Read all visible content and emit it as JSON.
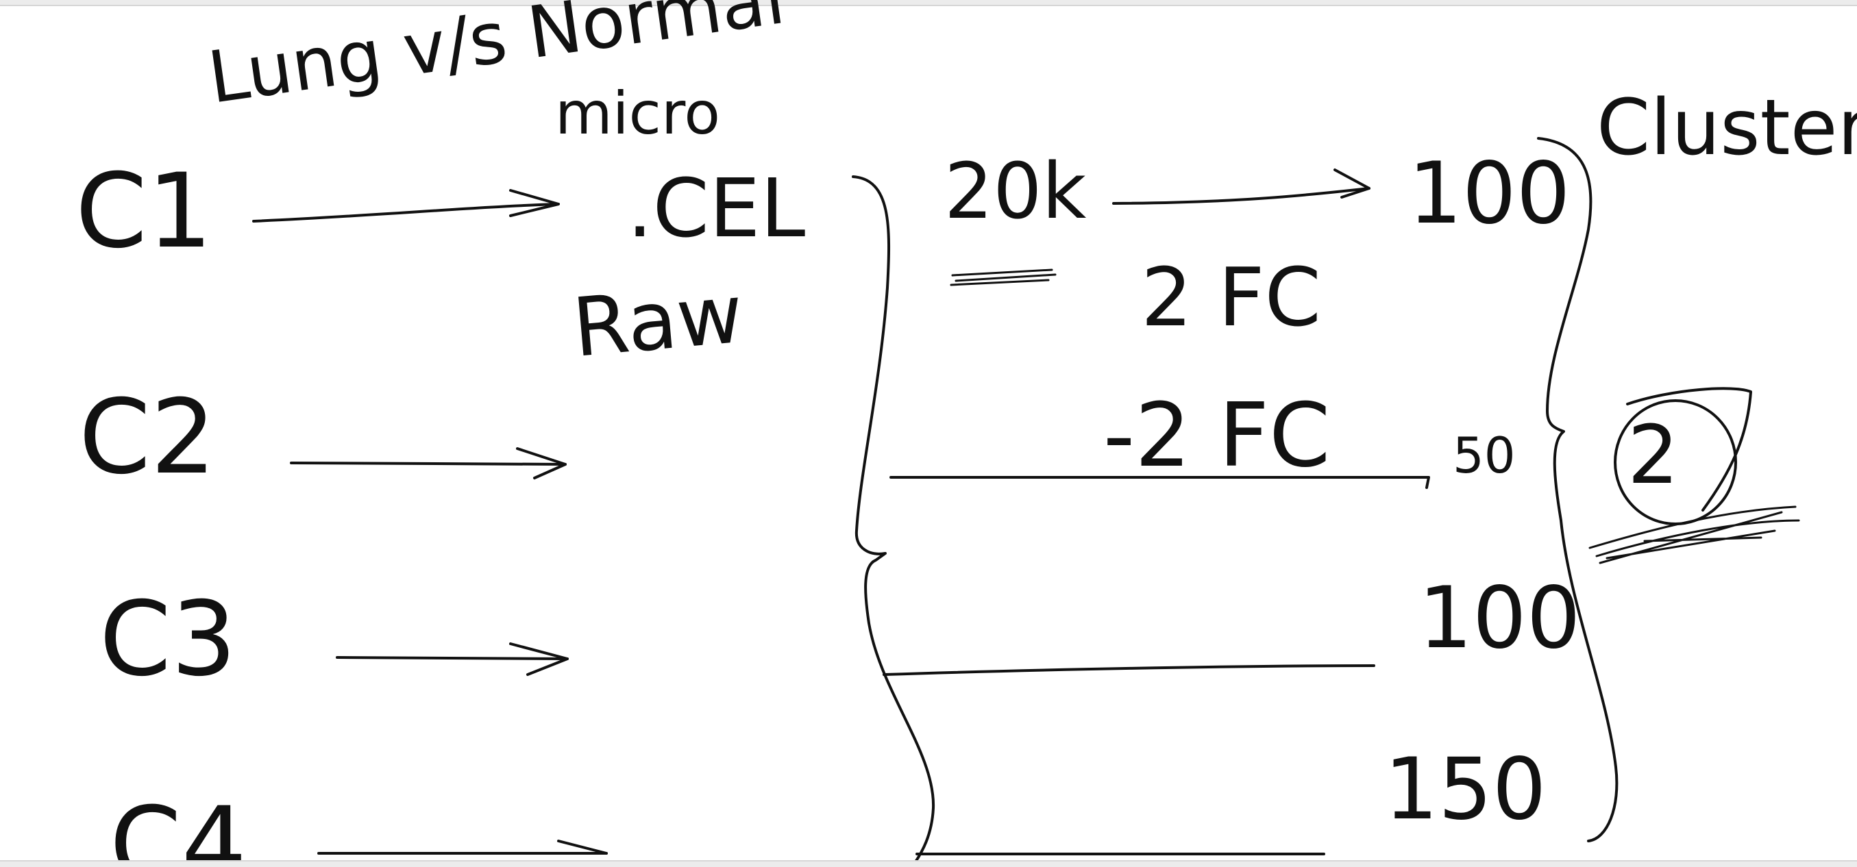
{
  "canvas": {
    "background": "#ffffff",
    "ink": "#111111"
  },
  "title": {
    "line1": "Lung v/s Normal",
    "line2": "micro"
  },
  "samples": [
    "C1",
    "C2",
    "C3",
    "C4"
  ],
  "file_notes": {
    "format": ".CEL",
    "kind": "Raw"
  },
  "gene_count": "20k",
  "fold_change": {
    "up": "2 FC",
    "down": "-2 FC"
  },
  "selections": [
    "100",
    "50",
    "100",
    "150"
  ],
  "method": "Clustering",
  "cluster_count": "2"
}
